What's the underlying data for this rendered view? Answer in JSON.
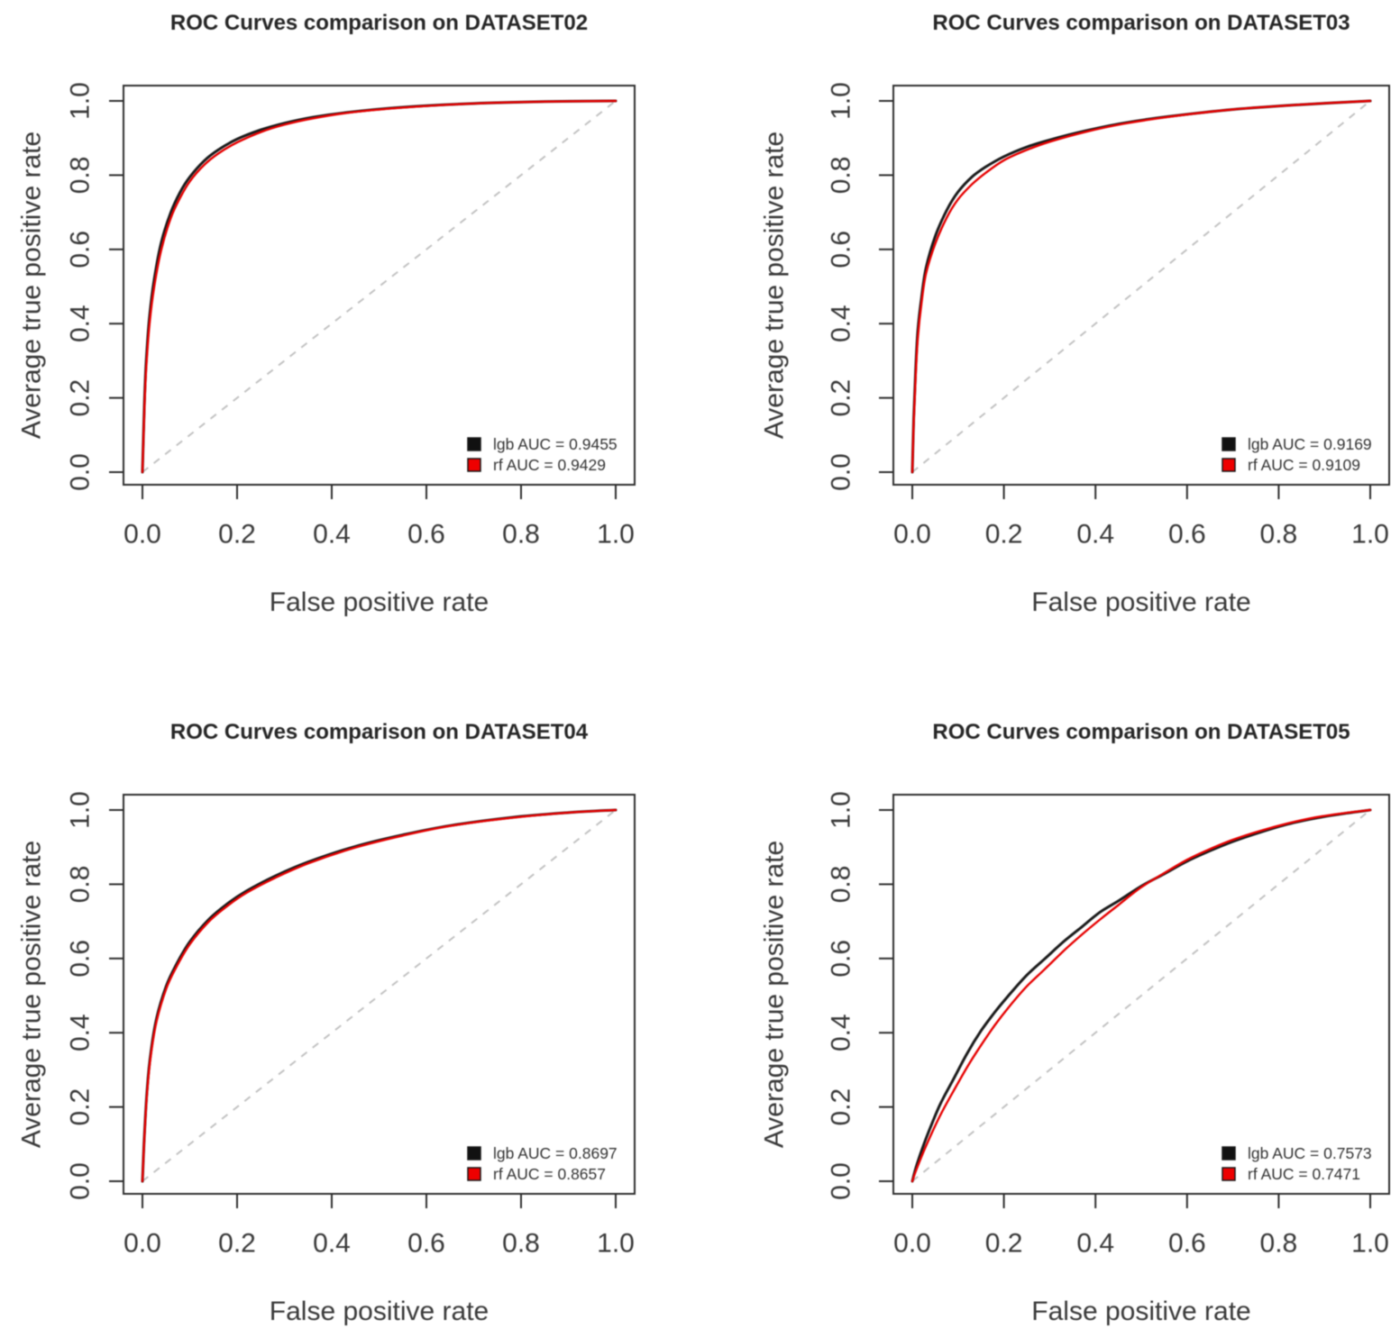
{
  "figure": {
    "background": "#ffffff",
    "axis_color": "#2e2e2e",
    "text_color": "#3a3a3a",
    "title_color": "#262626",
    "diagonal_color": "#c2c2c2"
  },
  "chart_data": [
    {
      "type": "line",
      "title": "ROC Curves comparison on DATASET02",
      "xlabel": "False positive rate",
      "ylabel": "Average true positive rate",
      "xlim": [
        0.0,
        1.0
      ],
      "ylim": [
        0.0,
        1.0
      ],
      "xticks": [
        "0.0",
        "0.2",
        "0.4",
        "0.6",
        "0.8",
        "1.0"
      ],
      "yticks": [
        "0.0",
        "0.2",
        "0.4",
        "0.6",
        "0.8",
        "1.0"
      ],
      "grid": false,
      "diagonal": {
        "style": "dashed",
        "color": "#c2c2c2"
      },
      "legend": {
        "position": "bottom-right",
        "frame": false
      },
      "series": [
        {
          "name": "lgb",
          "auc": 0.9455,
          "legend_label": "lgb AUC = 0.9455",
          "color": "#1b1b1b",
          "marker_fill": "#111111",
          "points": [
            [
              0,
              0
            ],
            [
              0.004,
              0.18
            ],
            [
              0.008,
              0.3
            ],
            [
              0.015,
              0.42
            ],
            [
              0.025,
              0.52
            ],
            [
              0.04,
              0.62
            ],
            [
              0.06,
              0.7
            ],
            [
              0.08,
              0.755
            ],
            [
              0.1,
              0.795
            ],
            [
              0.13,
              0.838
            ],
            [
              0.16,
              0.868
            ],
            [
              0.2,
              0.897
            ],
            [
              0.25,
              0.922
            ],
            [
              0.3,
              0.94
            ],
            [
              0.36,
              0.956
            ],
            [
              0.44,
              0.97
            ],
            [
              0.55,
              0.983
            ],
            [
              0.7,
              0.993
            ],
            [
              0.85,
              0.998
            ],
            [
              1,
              1
            ]
          ]
        },
        {
          "name": "rf",
          "auc": 0.9429,
          "legend_label": "rf AUC = 0.9429",
          "color": "#e60000",
          "marker_fill": "#ee0000",
          "points": [
            [
              0,
              0
            ],
            [
              0.004,
              0.165
            ],
            [
              0.008,
              0.28
            ],
            [
              0.015,
              0.4
            ],
            [
              0.025,
              0.5
            ],
            [
              0.04,
              0.6
            ],
            [
              0.06,
              0.685
            ],
            [
              0.08,
              0.74
            ],
            [
              0.1,
              0.783
            ],
            [
              0.13,
              0.827
            ],
            [
              0.16,
              0.858
            ],
            [
              0.2,
              0.888
            ],
            [
              0.25,
              0.916
            ],
            [
              0.3,
              0.936
            ],
            [
              0.36,
              0.953
            ],
            [
              0.44,
              0.969
            ],
            [
              0.55,
              0.982
            ],
            [
              0.7,
              0.993
            ],
            [
              0.85,
              0.998
            ],
            [
              1,
              1
            ]
          ]
        }
      ]
    },
    {
      "type": "line",
      "title": "ROC Curves comparison on DATASET03",
      "xlabel": "False positive rate",
      "ylabel": "Average true positive rate",
      "xlim": [
        0.0,
        1.0
      ],
      "ylim": [
        0.0,
        1.0
      ],
      "xticks": [
        "0.0",
        "0.2",
        "0.4",
        "0.6",
        "0.8",
        "1.0"
      ],
      "yticks": [
        "0.0",
        "0.2",
        "0.4",
        "0.6",
        "0.8",
        "1.0"
      ],
      "grid": false,
      "diagonal": {
        "style": "dashed",
        "color": "#c2c2c2"
      },
      "legend": {
        "position": "bottom-right",
        "frame": false
      },
      "series": [
        {
          "name": "lgb",
          "auc": 0.9169,
          "legend_label": "lgb AUC = 0.9169",
          "color": "#1b1b1b",
          "marker_fill": "#111111",
          "points": [
            [
              0,
              0
            ],
            [
              0.003,
              0.14
            ],
            [
              0.007,
              0.27
            ],
            [
              0.012,
              0.38
            ],
            [
              0.02,
              0.47
            ],
            [
              0.03,
              0.55
            ],
            [
              0.05,
              0.635
            ],
            [
              0.075,
              0.705
            ],
            [
              0.1,
              0.755
            ],
            [
              0.13,
              0.795
            ],
            [
              0.16,
              0.822
            ],
            [
              0.2,
              0.85
            ],
            [
              0.25,
              0.876
            ],
            [
              0.3,
              0.895
            ],
            [
              0.38,
              0.92
            ],
            [
              0.46,
              0.94
            ],
            [
              0.56,
              0.958
            ],
            [
              0.7,
              0.977
            ],
            [
              0.85,
              0.99
            ],
            [
              1,
              1
            ]
          ]
        },
        {
          "name": "rf",
          "auc": 0.9109,
          "legend_label": "rf AUC = 0.9109",
          "color": "#e60000",
          "marker_fill": "#ee0000",
          "points": [
            [
              0,
              0
            ],
            [
              0.003,
              0.13
            ],
            [
              0.007,
              0.25
            ],
            [
              0.012,
              0.36
            ],
            [
              0.02,
              0.455
            ],
            [
              0.03,
              0.535
            ],
            [
              0.05,
              0.615
            ],
            [
              0.075,
              0.685
            ],
            [
              0.1,
              0.735
            ],
            [
              0.13,
              0.775
            ],
            [
              0.16,
              0.806
            ],
            [
              0.2,
              0.84
            ],
            [
              0.25,
              0.868
            ],
            [
              0.3,
              0.89
            ],
            [
              0.38,
              0.917
            ],
            [
              0.46,
              0.938
            ],
            [
              0.56,
              0.957
            ],
            [
              0.7,
              0.977
            ],
            [
              0.85,
              0.99
            ],
            [
              1,
              1
            ]
          ]
        }
      ]
    },
    {
      "type": "line",
      "title": "ROC Curves comparison on DATASET04",
      "xlabel": "False positive rate",
      "ylabel": "Average true positive rate",
      "xlim": [
        0.0,
        1.0
      ],
      "ylim": [
        0.0,
        1.0
      ],
      "xticks": [
        "0.0",
        "0.2",
        "0.4",
        "0.6",
        "0.8",
        "1.0"
      ],
      "yticks": [
        "0.0",
        "0.2",
        "0.4",
        "0.6",
        "0.8",
        "1.0"
      ],
      "grid": false,
      "diagonal": {
        "style": "dashed",
        "color": "#c2c2c2"
      },
      "legend": {
        "position": "bottom-right",
        "frame": false
      },
      "series": [
        {
          "name": "lgb",
          "auc": 0.8697,
          "legend_label": "lgb AUC = 0.8697",
          "color": "#1b1b1b",
          "marker_fill": "#111111",
          "points": [
            [
              0,
              0
            ],
            [
              0.004,
              0.12
            ],
            [
              0.01,
              0.25
            ],
            [
              0.018,
              0.35
            ],
            [
              0.03,
              0.44
            ],
            [
              0.05,
              0.525
            ],
            [
              0.07,
              0.58
            ],
            [
              0.1,
              0.645
            ],
            [
              0.14,
              0.705
            ],
            [
              0.18,
              0.748
            ],
            [
              0.22,
              0.782
            ],
            [
              0.28,
              0.822
            ],
            [
              0.35,
              0.86
            ],
            [
              0.45,
              0.902
            ],
            [
              0.55,
              0.933
            ],
            [
              0.65,
              0.958
            ],
            [
              0.78,
              0.98
            ],
            [
              0.9,
              0.993
            ],
            [
              1,
              1
            ]
          ]
        },
        {
          "name": "rf",
          "auc": 0.8657,
          "legend_label": "rf AUC = 0.8657",
          "color": "#e60000",
          "marker_fill": "#ee0000",
          "points": [
            [
              0,
              0
            ],
            [
              0.004,
              0.115
            ],
            [
              0.01,
              0.243
            ],
            [
              0.018,
              0.342
            ],
            [
              0.03,
              0.432
            ],
            [
              0.05,
              0.518
            ],
            [
              0.07,
              0.573
            ],
            [
              0.1,
              0.638
            ],
            [
              0.14,
              0.699
            ],
            [
              0.18,
              0.742
            ],
            [
              0.22,
              0.777
            ],
            [
              0.28,
              0.817
            ],
            [
              0.35,
              0.856
            ],
            [
              0.45,
              0.899
            ],
            [
              0.55,
              0.931
            ],
            [
              0.65,
              0.957
            ],
            [
              0.78,
              0.979
            ],
            [
              0.9,
              0.993
            ],
            [
              1,
              1
            ]
          ]
        }
      ]
    },
    {
      "type": "line",
      "title": "ROC Curves comparison on DATASET05",
      "xlabel": "False positive rate",
      "ylabel": "Average true positive rate",
      "xlim": [
        0.0,
        1.0
      ],
      "ylim": [
        0.0,
        1.0
      ],
      "xticks": [
        "0.0",
        "0.2",
        "0.4",
        "0.6",
        "0.8",
        "1.0"
      ],
      "yticks": [
        "0.0",
        "0.2",
        "0.4",
        "0.6",
        "0.8",
        "1.0"
      ],
      "grid": false,
      "diagonal": {
        "style": "dashed",
        "color": "#c2c2c2"
      },
      "legend": {
        "position": "bottom-right",
        "frame": false
      },
      "series": [
        {
          "name": "lgb",
          "auc": 0.7573,
          "legend_label": "lgb AUC = 0.7573",
          "color": "#1b1b1b",
          "marker_fill": "#111111",
          "points": [
            [
              0,
              0
            ],
            [
              0.01,
              0.045
            ],
            [
              0.03,
              0.115
            ],
            [
              0.06,
              0.205
            ],
            [
              0.09,
              0.275
            ],
            [
              0.12,
              0.345
            ],
            [
              0.15,
              0.405
            ],
            [
              0.18,
              0.455
            ],
            [
              0.21,
              0.5
            ],
            [
              0.25,
              0.555
            ],
            [
              0.29,
              0.6
            ],
            [
              0.33,
              0.645
            ],
            [
              0.37,
              0.685
            ],
            [
              0.41,
              0.725
            ],
            [
              0.45,
              0.755
            ],
            [
              0.5,
              0.795
            ],
            [
              0.55,
              0.828
            ],
            [
              0.6,
              0.862
            ],
            [
              0.65,
              0.89
            ],
            [
              0.7,
              0.915
            ],
            [
              0.76,
              0.94
            ],
            [
              0.82,
              0.962
            ],
            [
              0.88,
              0.978
            ],
            [
              0.94,
              0.99
            ],
            [
              1,
              1
            ]
          ]
        },
        {
          "name": "rf",
          "auc": 0.7471,
          "legend_label": "rf AUC = 0.7471",
          "color": "#e60000",
          "marker_fill": "#ee0000",
          "points": [
            [
              0,
              0
            ],
            [
              0.01,
              0.035
            ],
            [
              0.03,
              0.095
            ],
            [
              0.06,
              0.175
            ],
            [
              0.09,
              0.243
            ],
            [
              0.12,
              0.308
            ],
            [
              0.15,
              0.366
            ],
            [
              0.18,
              0.42
            ],
            [
              0.21,
              0.468
            ],
            [
              0.25,
              0.525
            ],
            [
              0.29,
              0.572
            ],
            [
              0.33,
              0.62
            ],
            [
              0.37,
              0.664
            ],
            [
              0.41,
              0.705
            ],
            [
              0.45,
              0.744
            ],
            [
              0.5,
              0.792
            ],
            [
              0.55,
              0.83
            ],
            [
              0.6,
              0.866
            ],
            [
              0.65,
              0.895
            ],
            [
              0.7,
              0.92
            ],
            [
              0.76,
              0.944
            ],
            [
              0.82,
              0.964
            ],
            [
              0.88,
              0.98
            ],
            [
              0.94,
              0.991
            ],
            [
              1,
              1
            ]
          ]
        }
      ]
    }
  ]
}
